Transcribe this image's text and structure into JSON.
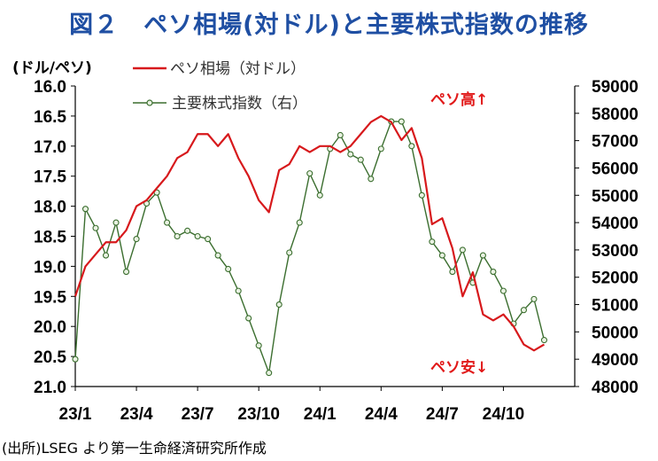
{
  "title": "図２　ペソ相場(対ドル)と主要株式指数の推移",
  "left_unit": "(ドル/ペソ)",
  "source": "(出所)LSEG より第一生命経済研究所作成",
  "annotations": {
    "up": "ペソ高↑",
    "down": "ペソ安↓"
  },
  "colors": {
    "title": "#1f4fa3",
    "peso": "#d7191c",
    "index": "#3b6e2f",
    "annotation": "#e11919"
  },
  "chart_data": {
    "type": "line",
    "x_tick_labels": [
      "23/1",
      "23/4",
      "23/7",
      "23/10",
      "24/1",
      "24/4",
      "24/7",
      "24/10"
    ],
    "left_axis": {
      "ticks": [
        "16.0",
        "16.5",
        "17.0",
        "17.5",
        "18.0",
        "18.5",
        "19.0",
        "19.5",
        "20.0",
        "20.5",
        "21.0"
      ],
      "ylim": [
        16.0,
        21.0
      ],
      "inverted": true
    },
    "right_axis": {
      "ticks": [
        "59000",
        "58000",
        "57000",
        "56000",
        "55000",
        "54000",
        "53000",
        "52000",
        "51000",
        "50000",
        "49000",
        "48000"
      ],
      "ylim": [
        48000,
        59000
      ]
    },
    "grid": false,
    "legend_position": "top-left",
    "series": [
      {
        "name": "ペソ相場（対ドル）",
        "axis": "left",
        "marker": "none",
        "x": [
          "23/1",
          "23/1",
          "23/2",
          "23/2",
          "23/3",
          "23/3",
          "23/4",
          "23/4",
          "23/5",
          "23/5",
          "23/6",
          "23/6",
          "23/7",
          "23/7",
          "23/8",
          "23/8",
          "23/9",
          "23/9",
          "23/10",
          "23/10",
          "23/11",
          "23/11",
          "23/12",
          "23/12",
          "24/1",
          "24/1",
          "24/2",
          "24/2",
          "24/3",
          "24/3",
          "24/4",
          "24/4",
          "24/5",
          "24/5",
          "24/6",
          "24/6",
          "24/7",
          "24/7",
          "24/8",
          "24/8",
          "24/9",
          "24/9",
          "24/10",
          "24/10",
          "24/11",
          "24/11",
          "24/12"
        ],
        "values": [
          19.5,
          19.0,
          18.8,
          18.6,
          18.6,
          18.4,
          18.0,
          17.9,
          17.7,
          17.5,
          17.2,
          17.1,
          16.8,
          16.8,
          17.0,
          16.8,
          17.2,
          17.5,
          17.9,
          18.1,
          17.4,
          17.3,
          17.0,
          17.1,
          17.0,
          17.0,
          17.1,
          17.0,
          16.8,
          16.6,
          16.5,
          16.6,
          16.9,
          16.7,
          17.2,
          18.3,
          18.2,
          18.7,
          19.5,
          19.1,
          19.8,
          19.9,
          19.8,
          20.0,
          20.3,
          20.4,
          20.3
        ]
      },
      {
        "name": "主要株式指数（右）",
        "axis": "right",
        "marker": "circle",
        "x": [
          "23/1",
          "23/1",
          "23/2",
          "23/2",
          "23/3",
          "23/3",
          "23/4",
          "23/4",
          "23/5",
          "23/5",
          "23/6",
          "23/6",
          "23/7",
          "23/7",
          "23/8",
          "23/8",
          "23/9",
          "23/9",
          "23/10",
          "23/10",
          "23/11",
          "23/11",
          "23/12",
          "23/12",
          "24/1",
          "24/1",
          "24/2",
          "24/2",
          "24/3",
          "24/3",
          "24/4",
          "24/4",
          "24/5",
          "24/5",
          "24/6",
          "24/6",
          "24/7",
          "24/7",
          "24/8",
          "24/8",
          "24/9",
          "24/9",
          "24/10",
          "24/10",
          "24/11",
          "24/11",
          "24/12"
        ],
        "values": [
          49000,
          54500,
          53800,
          52800,
          54000,
          52200,
          53400,
          54700,
          55100,
          54000,
          53500,
          53700,
          53500,
          53400,
          52800,
          52300,
          51500,
          50500,
          49500,
          48500,
          51000,
          52900,
          54000,
          55800,
          55000,
          56700,
          57200,
          56500,
          56300,
          55600,
          56700,
          57700,
          57700,
          56800,
          55000,
          53300,
          52800,
          52200,
          53000,
          51800,
          52800,
          52200,
          51500,
          50300,
          50800,
          51200,
          49700
        ]
      }
    ]
  }
}
